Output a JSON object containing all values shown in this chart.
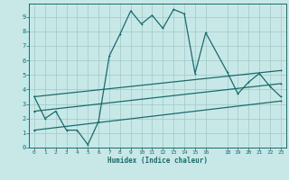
{
  "xlabel": "Humidex (Indice chaleur)",
  "xlim": [
    -0.5,
    23.5
  ],
  "ylim": [
    0,
    9.9
  ],
  "background_color": "#c8e8e8",
  "grid_color": "#9ec8c8",
  "line_color": "#1a6b6b",
  "xtick_vals": [
    0,
    1,
    2,
    3,
    4,
    5,
    6,
    7,
    8,
    9,
    10,
    11,
    12,
    13,
    14,
    15,
    16,
    18,
    19,
    20,
    21,
    22,
    23
  ],
  "ytick_vals": [
    0,
    1,
    2,
    3,
    4,
    5,
    6,
    7,
    8,
    9
  ],
  "curve1_x": [
    0,
    1,
    2,
    3,
    4,
    5,
    6,
    7,
    8,
    9,
    10,
    11,
    12,
    13,
    14,
    15,
    16,
    18,
    19,
    20,
    21,
    22,
    23
  ],
  "curve1_y": [
    3.5,
    2.0,
    2.5,
    1.2,
    1.2,
    0.2,
    1.8,
    6.3,
    7.8,
    9.4,
    8.5,
    9.1,
    8.2,
    9.5,
    9.2,
    5.1,
    7.9,
    5.2,
    3.7,
    4.5,
    5.1,
    4.2,
    3.5
  ],
  "line1_x": [
    0,
    23
  ],
  "line1_y": [
    1.2,
    3.2
  ],
  "line2_x": [
    0,
    23
  ],
  "line2_y": [
    2.5,
    4.4
  ],
  "line3_x": [
    0,
    23
  ],
  "line3_y": [
    3.5,
    5.3
  ]
}
